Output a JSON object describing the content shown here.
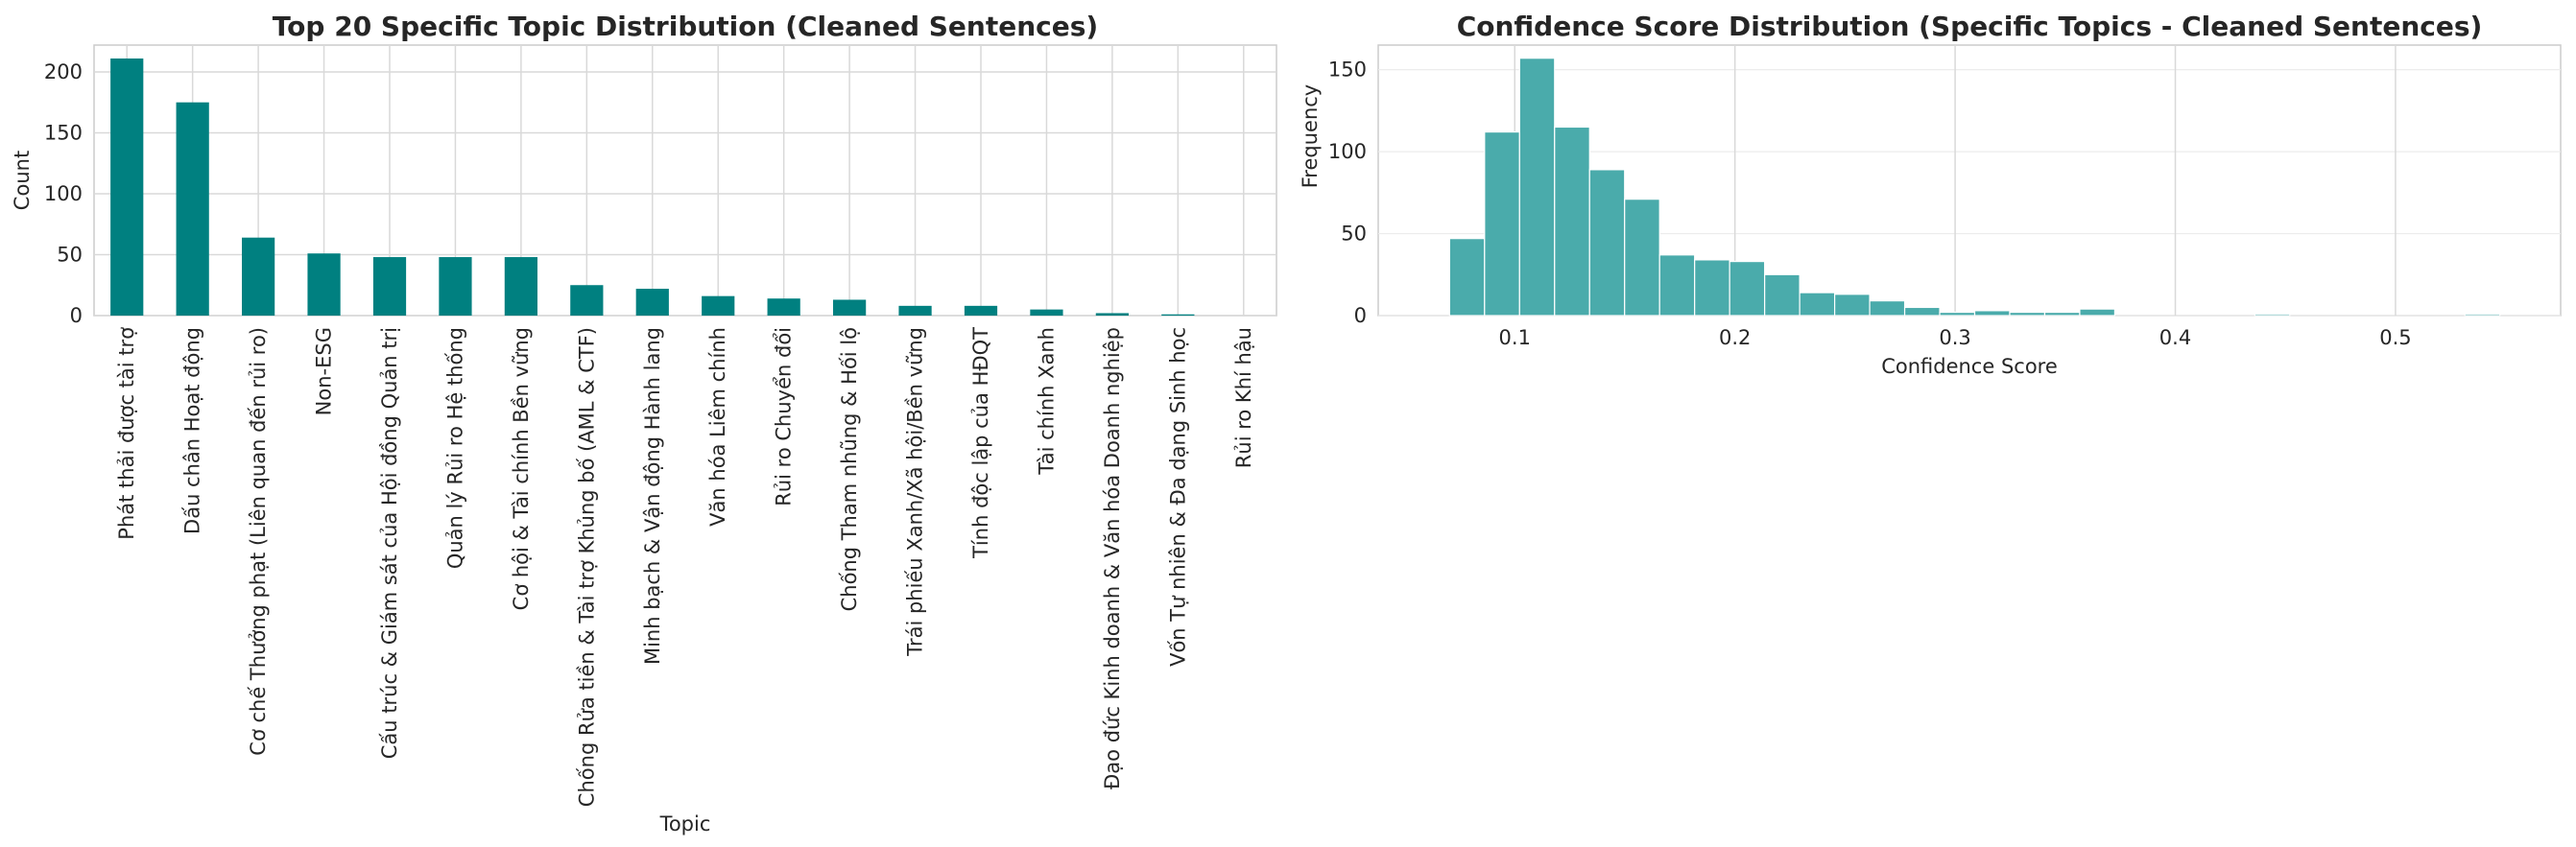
{
  "chart_data": [
    {
      "type": "bar",
      "title": "Top 20 Specific Topic Distribution (Cleaned Sentences)",
      "xlabel": "Topic",
      "ylabel": "Count",
      "ylim": [
        0,
        222
      ],
      "yticks": [
        0,
        50,
        100,
        150,
        200
      ],
      "grid": true,
      "color": "#008080",
      "categories": [
        "Phát thải được tài trợ",
        "Dấu chân Hoạt động",
        "Cơ chế Thưởng phạt (Liên quan đến rủi ro)",
        "Non-ESG",
        "Cấu trúc & Giám sát của Hội đồng Quản trị",
        "Quản lý Rủi ro Hệ thống",
        "Cơ hội & Tài chính Bền vững",
        "Chống Rửa tiền & Tài trợ Khủng bố (AML & CTF)",
        "Minh bạch & Vận động Hành lang",
        "Văn hóa Liêm chính",
        "Rủi ro Chuyển đổi",
        "Chống Tham nhũng & Hối lộ",
        "Trái phiếu Xanh/Xã hội/Bền vững",
        "Tính độc lập của HĐQT",
        "Tài chính Xanh",
        "Đạo đức Kinh doanh & Văn hóa Doanh nghiệp",
        "Vốn Tự nhiên & Đa dạng Sinh học",
        "Rủi ro Khí hậu"
      ],
      "values": [
        211,
        175,
        64,
        51,
        48,
        48,
        48,
        25,
        22,
        16,
        14,
        13,
        8,
        8,
        5,
        2,
        1,
        0
      ]
    },
    {
      "type": "histogram",
      "title": "Confidence Score Distribution (Specific Topics - Cleaned Sentences)",
      "xlabel": "Confidence Score",
      "ylabel": "Frequency",
      "xlim": [
        0.038,
        0.575
      ],
      "ylim": [
        0,
        165
      ],
      "xticks": [
        0.1,
        0.2,
        0.3,
        0.4,
        0.5
      ],
      "yticks": [
        0,
        50,
        100,
        150
      ],
      "grid": true,
      "color": "#4aabab",
      "bin_width": 0.0159,
      "bin_starts": [
        0.0704,
        0.0863,
        0.1022,
        0.1181,
        0.134,
        0.1499,
        0.1658,
        0.1817,
        0.1976,
        0.2135,
        0.2294,
        0.2453,
        0.2612,
        0.2771,
        0.293,
        0.3089,
        0.3248,
        0.3407,
        0.3566,
        0.3725,
        0.3884,
        0.4043,
        0.4202,
        0.4361,
        0.452,
        0.4679,
        0.4838,
        0.4997,
        0.5156,
        0.5315
      ],
      "counts": [
        47,
        112,
        157,
        115,
        89,
        71,
        37,
        34,
        33,
        25,
        14,
        13,
        9,
        5,
        2,
        3,
        2,
        2,
        4,
        0,
        0,
        0,
        0,
        1,
        0,
        0,
        0,
        0,
        0,
        1
      ]
    }
  ]
}
